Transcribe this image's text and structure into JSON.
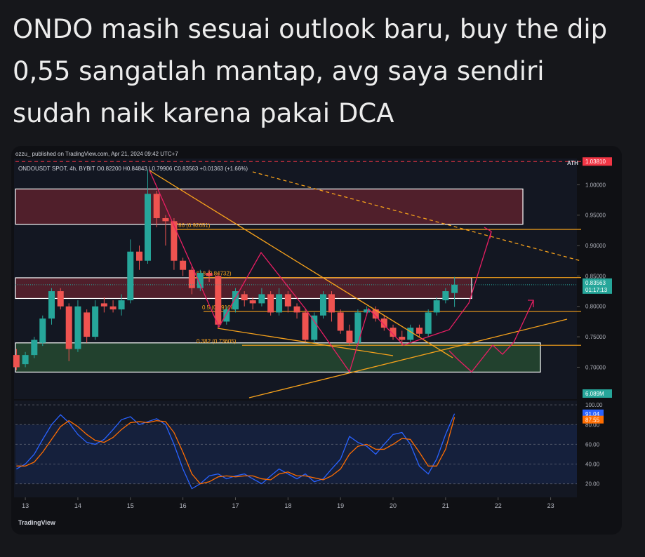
{
  "post": {
    "lines": [
      "ONDO  masih sesuai outlook baru, buy the dip",
      "0,55 sangatlah mantap, avg saya sendiri",
      "sudah naik karena pakai DCA"
    ]
  },
  "header": {
    "published": "ozzu_ published on TradingView.com, Apr 21, 2024 09:42 UTC+7",
    "symbol": "ONDOUSDT SPOT, 4h, BYBIT  O0.82200 H0.84843 L0.79906 C0.83563 +0.01363 (+1.66%)"
  },
  "footer": {
    "logo": "TradingView"
  },
  "chart_data": [
    {
      "type": "candlestick",
      "up_color": "#26a69a",
      "down_color": "#ef5350",
      "x": [
        12.83,
        13,
        13.17,
        13.33,
        13.5,
        13.67,
        13.83,
        14,
        14.17,
        14.33,
        14.5,
        14.67,
        14.83,
        15,
        15.17,
        15.33,
        15.5,
        15.67,
        15.83,
        16,
        16.17,
        16.33,
        16.5,
        16.67,
        16.83,
        17,
        17.17,
        17.33,
        17.5,
        17.67,
        17.83,
        18,
        18.17,
        18.33,
        18.5,
        18.67,
        18.83,
        19,
        19.17,
        19.33,
        19.5,
        19.67,
        19.83,
        20,
        20.17,
        20.33,
        20.5,
        20.67,
        20.83,
        21,
        21.17
      ],
      "open": [
        0.72,
        0.705,
        0.72,
        0.74,
        0.78,
        0.825,
        0.8,
        0.73,
        0.79,
        0.75,
        0.805,
        0.8,
        0.795,
        0.81,
        0.89,
        0.875,
        0.985,
        0.945,
        0.94,
        0.875,
        0.86,
        0.83,
        0.855,
        0.85,
        0.775,
        0.795,
        0.82,
        0.81,
        0.805,
        0.82,
        0.79,
        0.82,
        0.8,
        0.79,
        0.745,
        0.785,
        0.82,
        0.79,
        0.76,
        0.74,
        0.79,
        0.795,
        0.78,
        0.765,
        0.75,
        0.745,
        0.765,
        0.755,
        0.79,
        0.81,
        0.822
      ],
      "high": [
        0.73,
        0.725,
        0.75,
        0.785,
        0.83,
        0.83,
        0.805,
        0.81,
        0.795,
        0.81,
        0.815,
        0.81,
        0.82,
        0.91,
        0.9,
        1.025,
        0.99,
        0.95,
        0.945,
        0.88,
        0.865,
        0.86,
        0.86,
        0.855,
        0.8,
        0.83,
        0.825,
        0.815,
        0.83,
        0.825,
        0.83,
        0.825,
        0.805,
        0.795,
        0.79,
        0.825,
        0.825,
        0.795,
        0.77,
        0.795,
        0.8,
        0.8,
        0.785,
        0.77,
        0.76,
        0.77,
        0.77,
        0.795,
        0.815,
        0.83,
        0.84843
      ],
      "low": [
        0.695,
        0.7,
        0.715,
        0.735,
        0.77,
        0.795,
        0.71,
        0.725,
        0.74,
        0.745,
        0.79,
        0.79,
        0.785,
        0.805,
        0.86,
        0.87,
        0.93,
        0.9,
        0.86,
        0.85,
        0.82,
        0.825,
        0.84,
        0.765,
        0.77,
        0.79,
        0.8,
        0.795,
        0.8,
        0.785,
        0.785,
        0.79,
        0.78,
        0.74,
        0.74,
        0.78,
        0.775,
        0.755,
        0.735,
        0.735,
        0.785,
        0.775,
        0.76,
        0.745,
        0.735,
        0.74,
        0.75,
        0.75,
        0.785,
        0.805,
        0.79906
      ],
      "close": [
        0.7,
        0.72,
        0.745,
        0.78,
        0.825,
        0.8,
        0.73,
        0.8,
        0.75,
        0.8,
        0.8,
        0.795,
        0.81,
        0.89,
        0.875,
        0.985,
        0.945,
        0.94,
        0.875,
        0.86,
        0.83,
        0.855,
        0.85,
        0.77,
        0.795,
        0.825,
        0.81,
        0.805,
        0.82,
        0.79,
        0.82,
        0.8,
        0.79,
        0.745,
        0.785,
        0.82,
        0.79,
        0.76,
        0.74,
        0.79,
        0.795,
        0.78,
        0.765,
        0.75,
        0.745,
        0.765,
        0.755,
        0.79,
        0.81,
        0.825,
        0.83563
      ],
      "xlim": [
        12.785,
        23.5
      ],
      "xticks": [
        13,
        14,
        15,
        16,
        17,
        18,
        19,
        20,
        21,
        22,
        23
      ],
      "ylim": [
        0.6475,
        1.043
      ],
      "yticks": [
        {
          "value": 0.7,
          "label": "0.70000"
        },
        {
          "value": 0.75,
          "label": "0.75000"
        },
        {
          "value": 0.8,
          "label": "0.80000"
        },
        {
          "value": 0.85,
          "label": "0.85000"
        },
        {
          "value": 0.9,
          "label": "0.90000"
        },
        {
          "value": 0.95,
          "label": "0.95000"
        },
        {
          "value": 1.0,
          "label": "1.00000"
        }
      ],
      "zones": [
        {
          "from": 0.935,
          "to": 0.993,
          "color": "#f23645"
        },
        {
          "from": 0.813,
          "to": 0.847,
          "color": "#f23645"
        },
        {
          "from": 0.692,
          "to": 0.74,
          "color": "#4caf50"
        }
      ],
      "fib_levels": [
        {
          "value": 0.92651,
          "label": "0.786 (0.92651)"
        },
        {
          "value": 0.84732,
          "label": "0.618 (0.84732)"
        },
        {
          "value": 0.79168,
          "label": "0.5 (0.79168)"
        },
        {
          "value": 0.73605,
          "label": "0.382 (0.73605)"
        }
      ],
      "ath": {
        "name": "ATH",
        "value": 1.0381,
        "label": "1.03810"
      },
      "last_price": 0.83563,
      "countdown": "01:17:13",
      "volume_label": "6.089M"
    },
    {
      "type": "line",
      "x": [
        12.83,
        13,
        13.17,
        13.33,
        13.5,
        13.67,
        13.83,
        14,
        14.17,
        14.33,
        14.5,
        14.67,
        14.83,
        15,
        15.17,
        15.33,
        15.5,
        15.67,
        15.83,
        16,
        16.17,
        16.33,
        16.5,
        16.67,
        16.83,
        17,
        17.17,
        17.33,
        17.5,
        17.67,
        17.83,
        18,
        18.17,
        18.33,
        18.5,
        18.67,
        18.83,
        19,
        19.17,
        19.33,
        19.5,
        19.67,
        19.83,
        20,
        20.17,
        20.33,
        20.5,
        20.67,
        20.83,
        21,
        21.17
      ],
      "series": [
        {
          "color": "#2962ff",
          "values": [
            35,
            40,
            50,
            65,
            80,
            90,
            82,
            70,
            62,
            60,
            65,
            75,
            85,
            88,
            80,
            83,
            86,
            80,
            60,
            35,
            15,
            20,
            28,
            30,
            25,
            28,
            30,
            25,
            20,
            28,
            35,
            30,
            25,
            30,
            22,
            25,
            35,
            45,
            68,
            62,
            58,
            50,
            60,
            70,
            72,
            60,
            38,
            30,
            45,
            70,
            91.04
          ]
        },
        {
          "color": "#ff6d00",
          "values": [
            38,
            38,
            42,
            52,
            65,
            78,
            84,
            78,
            70,
            64,
            62,
            67,
            75,
            82,
            83,
            82,
            84,
            83,
            72,
            52,
            30,
            20,
            22,
            27,
            28,
            27,
            28,
            28,
            25,
            24,
            30,
            32,
            28,
            28,
            26,
            24,
            28,
            35,
            50,
            58,
            60,
            55,
            55,
            60,
            66,
            65,
            52,
            38,
            38,
            55,
            87.55
          ]
        }
      ],
      "xlim": [
        12.785,
        23.5
      ],
      "ylim": [
        6.2,
        104.4
      ],
      "yticks": [
        {
          "value": 20,
          "label": "20.00"
        },
        {
          "value": 40,
          "label": "40.00"
        },
        {
          "value": 60,
          "label": "60.00"
        },
        {
          "value": 80,
          "label": "80.00"
        },
        {
          "value": 100,
          "label": "100.00"
        }
      ]
    }
  ]
}
